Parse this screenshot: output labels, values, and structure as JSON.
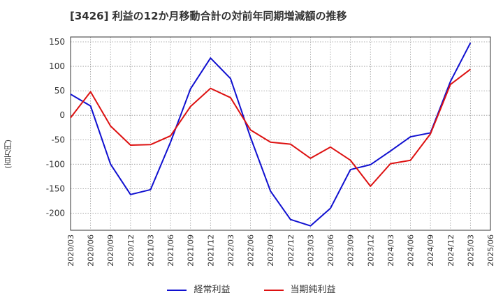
{
  "chart_data": {
    "type": "line",
    "title": "[3426]  利益の12か月移動合計の対前年同期増減額の推移",
    "ylabel": "(百万円)",
    "xlabel": "",
    "ylim": [
      -235,
      160
    ],
    "y_ticks": [
      150,
      100,
      50,
      0,
      -50,
      -100,
      -150,
      -200
    ],
    "categories": [
      "2020/03",
      "2020/06",
      "2020/09",
      "2020/12",
      "2021/03",
      "2021/06",
      "2021/09",
      "2021/12",
      "2022/03",
      "2022/06",
      "2022/09",
      "2022/12",
      "2023/03",
      "2023/06",
      "2023/09",
      "2023/12",
      "2024/03",
      "2024/06",
      "2024/09",
      "2024/12",
      "2025/03",
      "2025/06"
    ],
    "grid": true,
    "legend_position": "bottom",
    "series": [
      {
        "name": "経常利益",
        "color": "#1010d0",
        "values": [
          43,
          19,
          -100,
          -162,
          -152,
          -55,
          54,
          117,
          75,
          -45,
          -155,
          -213,
          -226,
          -190,
          -111,
          -101,
          -73,
          -44,
          -36,
          69,
          148,
          null
        ]
      },
      {
        "name": "当期純利益",
        "color": "#dd1111",
        "values": [
          -5,
          48,
          -22,
          -61,
          -60,
          -42,
          18,
          55,
          36,
          -30,
          -55,
          -59,
          -88,
          -65,
          -92,
          -145,
          -99,
          -92,
          -38,
          63,
          94,
          null
        ]
      }
    ]
  }
}
